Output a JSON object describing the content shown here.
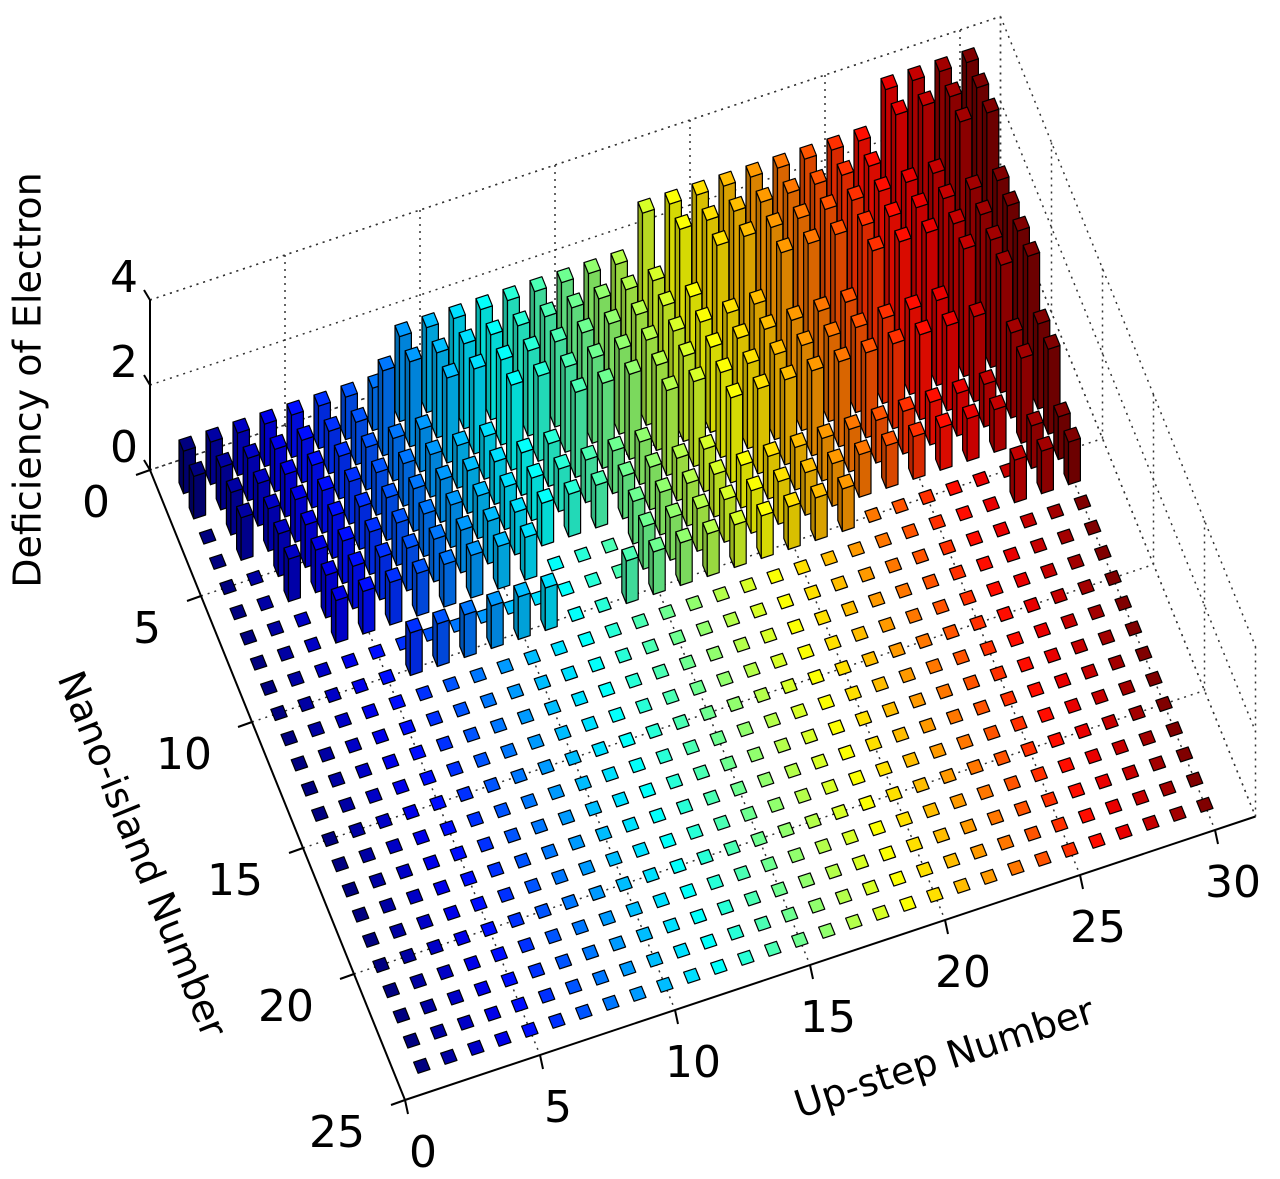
{
  "chart_data": {
    "type": "bar3d",
    "x_label": "Up-step Number",
    "y_label": "Nano-island Number",
    "z_label": "Deficiency of Electron",
    "x": [
      1,
      2,
      3,
      4,
      5,
      6,
      7,
      8,
      9,
      10,
      11,
      12,
      13,
      14,
      15,
      16,
      17,
      18,
      19,
      20,
      21,
      22,
      23,
      24,
      25,
      26,
      27,
      28,
      29,
      30
    ],
    "y": [
      1,
      2,
      3,
      4,
      5,
      6,
      7,
      8,
      9,
      10,
      11,
      12,
      13,
      14,
      15,
      16,
      17,
      18,
      19,
      20,
      21,
      22,
      23,
      24
    ],
    "values": [
      [
        1,
        1,
        1,
        1,
        1,
        1,
        1,
        1,
        2,
        2,
        2,
        2,
        2,
        2,
        2,
        2,
        2,
        3,
        3,
        3,
        3,
        3,
        3,
        3,
        3,
        3,
        4,
        4,
        4,
        4
      ],
      [
        1,
        1,
        1,
        1,
        1,
        1,
        1,
        2,
        2,
        2,
        2,
        2,
        2,
        2,
        2,
        2,
        2,
        2,
        3,
        3,
        3,
        3,
        3,
        3,
        3,
        3,
        4,
        4,
        4,
        4
      ],
      [
        0,
        1,
        1,
        1,
        1,
        1,
        1,
        1,
        1,
        2,
        2,
        2,
        2,
        2,
        2,
        2,
        2,
        2,
        2,
        3,
        3,
        3,
        3,
        3,
        3,
        3,
        3,
        3,
        4,
        4
      ],
      [
        0,
        1,
        1,
        1,
        1,
        1,
        1,
        1,
        1,
        1,
        1,
        2,
        2,
        2,
        2,
        2,
        2,
        2,
        2,
        2,
        2,
        3,
        3,
        3,
        3,
        3,
        3,
        3,
        3,
        3
      ],
      [
        0,
        0,
        1,
        1,
        1,
        1,
        1,
        1,
        1,
        1,
        1,
        1,
        1,
        2,
        2,
        2,
        2,
        2,
        2,
        2,
        2,
        2,
        2,
        2,
        3,
        3,
        3,
        3,
        3,
        3
      ],
      [
        0,
        0,
        1,
        1,
        1,
        1,
        1,
        1,
        1,
        1,
        1,
        1,
        1,
        1,
        1,
        1,
        2,
        2,
        2,
        2,
        2,
        2,
        2,
        2,
        2,
        2,
        2,
        3,
        3,
        3
      ],
      [
        0,
        0,
        0,
        1,
        1,
        1,
        1,
        1,
        1,
        1,
        1,
        1,
        1,
        1,
        1,
        1,
        1,
        1,
        2,
        2,
        2,
        2,
        2,
        2,
        2,
        2,
        2,
        2,
        3,
        3
      ],
      [
        0,
        0,
        0,
        1,
        1,
        1,
        1,
        1,
        1,
        1,
        1,
        0,
        0,
        0,
        1,
        1,
        1,
        1,
        1,
        1,
        1,
        1,
        1,
        1,
        1,
        1,
        1,
        1,
        2,
        2
      ],
      [
        0,
        0,
        0,
        0,
        0,
        0,
        0,
        0,
        0,
        0,
        0,
        0,
        0,
        0,
        1,
        1,
        1,
        1,
        1,
        1,
        1,
        1,
        1,
        1,
        1,
        1,
        1,
        1,
        2,
        2
      ],
      [
        0,
        0,
        0,
        0,
        0,
        1,
        1,
        1,
        1,
        1,
        1,
        0,
        0,
        1,
        1,
        1,
        1,
        1,
        1,
        1,
        1,
        1,
        0,
        0,
        0,
        0,
        0,
        0,
        1,
        1
      ],
      [
        0,
        0,
        0,
        0,
        0,
        0,
        0,
        0,
        0,
        0,
        0,
        0,
        0,
        0,
        0,
        0,
        0,
        0,
        0,
        0,
        0,
        0,
        0,
        0,
        0,
        0,
        0,
        1,
        1,
        1
      ],
      [
        0,
        0,
        0,
        0,
        0,
        0,
        0,
        0,
        0,
        0,
        0,
        0,
        0,
        0,
        0,
        0,
        0,
        0,
        0,
        0,
        0,
        0,
        0,
        0,
        0,
        0,
        0,
        0,
        0,
        0
      ],
      [
        0,
        0,
        0,
        0,
        0,
        0,
        0,
        0,
        0,
        0,
        0,
        0,
        0,
        0,
        0,
        0,
        0,
        0,
        0,
        0,
        0,
        0,
        0,
        0,
        0,
        0,
        0,
        0,
        0,
        0
      ],
      [
        0,
        0,
        0,
        0,
        0,
        0,
        0,
        0,
        0,
        0,
        0,
        0,
        0,
        0,
        0,
        0,
        0,
        0,
        0,
        0,
        0,
        0,
        0,
        0,
        0,
        0,
        0,
        0,
        0,
        0
      ],
      [
        0,
        0,
        0,
        0,
        0,
        0,
        0,
        0,
        0,
        0,
        0,
        0,
        0,
        0,
        0,
        0,
        0,
        0,
        0,
        0,
        0,
        0,
        0,
        0,
        0,
        0,
        0,
        0,
        0,
        0
      ],
      [
        0,
        0,
        0,
        0,
        0,
        0,
        0,
        0,
        0,
        0,
        0,
        0,
        0,
        0,
        0,
        0,
        0,
        0,
        0,
        0,
        0,
        0,
        0,
        0,
        0,
        0,
        0,
        0,
        0,
        0
      ],
      [
        0,
        0,
        0,
        0,
        0,
        0,
        0,
        0,
        0,
        0,
        0,
        0,
        0,
        0,
        0,
        0,
        0,
        0,
        0,
        0,
        0,
        0,
        0,
        0,
        0,
        0,
        0,
        0,
        0,
        0
      ],
      [
        0,
        0,
        0,
        0,
        0,
        0,
        0,
        0,
        0,
        0,
        0,
        0,
        0,
        0,
        0,
        0,
        0,
        0,
        0,
        0,
        0,
        0,
        0,
        0,
        0,
        0,
        0,
        0,
        0,
        0
      ],
      [
        0,
        0,
        0,
        0,
        0,
        0,
        0,
        0,
        0,
        0,
        0,
        0,
        0,
        0,
        0,
        0,
        0,
        0,
        0,
        0,
        0,
        0,
        0,
        0,
        0,
        0,
        0,
        0,
        0,
        0
      ],
      [
        0,
        0,
        0,
        0,
        0,
        0,
        0,
        0,
        0,
        0,
        0,
        0,
        0,
        0,
        0,
        0,
        0,
        0,
        0,
        0,
        0,
        0,
        0,
        0,
        0,
        0,
        0,
        0,
        0,
        0
      ],
      [
        0,
        0,
        0,
        0,
        0,
        0,
        0,
        0,
        0,
        0,
        0,
        0,
        0,
        0,
        0,
        0,
        0,
        0,
        0,
        0,
        0,
        0,
        0,
        0,
        0,
        0,
        0,
        0,
        0,
        0
      ],
      [
        0,
        0,
        0,
        0,
        0,
        0,
        0,
        0,
        0,
        0,
        0,
        0,
        0,
        0,
        0,
        0,
        0,
        0,
        0,
        0,
        0,
        0,
        0,
        0,
        0,
        0,
        0,
        0,
        0,
        0
      ],
      [
        0,
        0,
        0,
        0,
        0,
        0,
        0,
        0,
        0,
        0,
        0,
        0,
        0,
        0,
        0,
        0,
        0,
        0,
        0,
        0,
        0,
        0,
        0,
        0,
        0,
        0,
        0,
        0,
        0,
        0
      ],
      [
        0,
        0,
        0,
        0,
        0,
        0,
        0,
        0,
        0,
        0,
        0,
        0,
        0,
        0,
        0,
        0,
        0,
        0,
        0,
        0,
        0,
        0,
        0,
        0,
        0,
        0,
        0,
        0,
        0,
        0
      ]
    ],
    "xlim": [
      0,
      31.5
    ],
    "ylim": [
      0,
      25
    ],
    "zlim": [
      0,
      4
    ],
    "xticks": [
      0,
      5,
      10,
      15,
      20,
      25,
      30
    ],
    "yticks": [
      0,
      5,
      10,
      15,
      20,
      25
    ],
    "zticks": [
      0,
      2,
      4
    ],
    "colormap": "jet",
    "grid": true
  }
}
